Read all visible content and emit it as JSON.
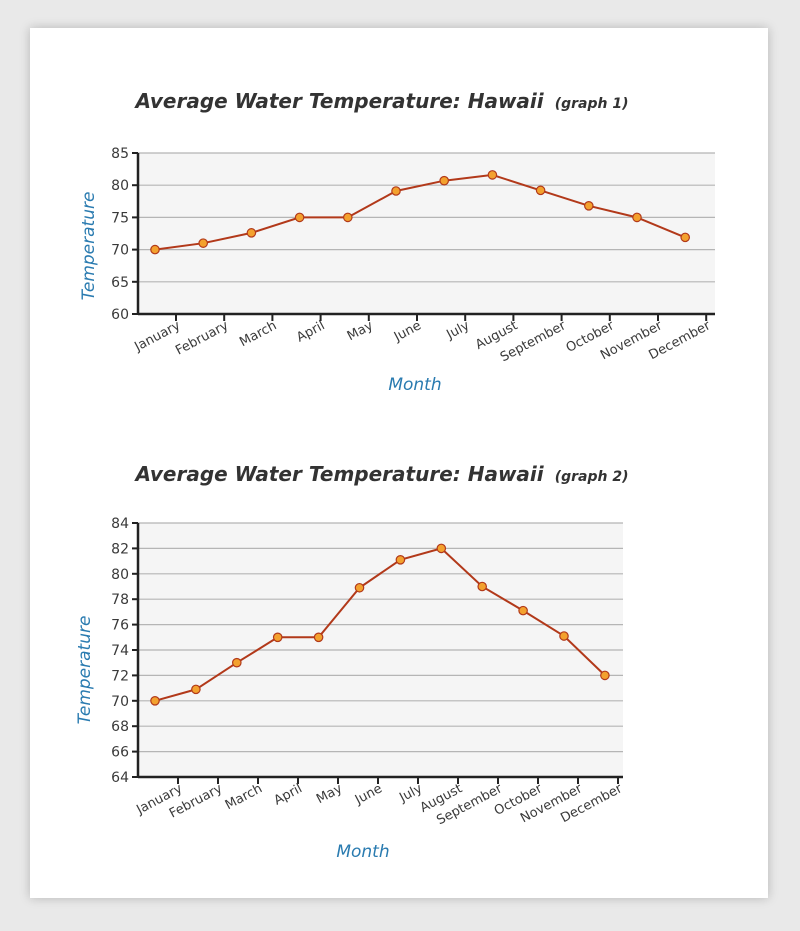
{
  "chart_data": [
    {
      "type": "line",
      "title": "Average Water Temperature: Hawaii",
      "subtitle": "(graph 1)",
      "xlabel": "Month",
      "ylabel": "Temperature",
      "categories": [
        "January",
        "February",
        "March",
        "April",
        "May",
        "June",
        "July",
        "August",
        "September",
        "October",
        "November",
        "December"
      ],
      "values": [
        70,
        71,
        72.6,
        75,
        75,
        79.1,
        80.7,
        81.6,
        79.2,
        76.8,
        75,
        71.9
      ],
      "ylim": [
        60,
        85
      ],
      "yticks": [
        60,
        65,
        70,
        75,
        80,
        85
      ],
      "grid": true,
      "line_color": "#b2391a",
      "marker_color": "#f3a12e",
      "plot_background": "#f5f5f5"
    },
    {
      "type": "line",
      "title": "Average Water Temperature: Hawaii",
      "subtitle": "(graph 2)",
      "xlabel": "Month",
      "ylabel": "Temperature",
      "categories": [
        "January",
        "February",
        "March",
        "April",
        "May",
        "June",
        "July",
        "August",
        "September",
        "October",
        "November",
        "December"
      ],
      "values": [
        70,
        70.9,
        73,
        75,
        75,
        78.9,
        81.1,
        82,
        79,
        77.1,
        75.1,
        72
      ],
      "ylim": [
        64,
        84
      ],
      "yticks": [
        64,
        66,
        68,
        70,
        72,
        74,
        76,
        78,
        80,
        82,
        84
      ],
      "grid": true,
      "line_color": "#b2391a",
      "marker_color": "#f3a12e",
      "plot_background": "#f5f5f5"
    }
  ]
}
